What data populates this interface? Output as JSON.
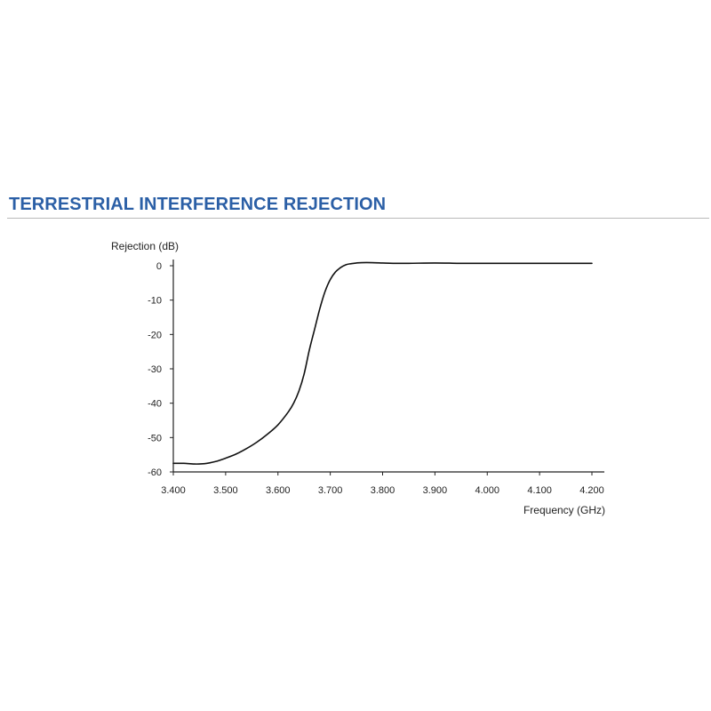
{
  "header": {
    "title": "TERRESTRIAL INTERFERENCE REJECTION"
  },
  "colors": {
    "title": "#2b5fa6",
    "curve": "#111111",
    "axis": "#222222",
    "rule": "#b9b9b9"
  },
  "chart_data": {
    "type": "line",
    "title": "",
    "xlabel": "Frequency (GHz)",
    "ylabel": "Rejection (dB)",
    "xlim": [
      3.4,
      4.2
    ],
    "ylim": [
      -60,
      0
    ],
    "x_ticks": [
      3.4,
      3.5,
      3.6,
      3.7,
      3.8,
      3.9,
      4.0,
      4.1,
      4.2
    ],
    "x_tick_labels": [
      "3.400",
      "3.500",
      "3.600",
      "3.700",
      "3.800",
      "3.900",
      "4.000",
      "4.100",
      "4.200"
    ],
    "y_ticks": [
      0,
      -10,
      -20,
      -30,
      -40,
      -50,
      -60
    ],
    "y_tick_labels": [
      "0",
      "-10",
      "-20",
      "-30",
      "-40",
      "-50",
      "-60"
    ],
    "grid": false,
    "legend": "none",
    "series": [
      {
        "x": [
          3.4,
          3.42,
          3.44,
          3.46,
          3.48,
          3.5,
          3.52,
          3.54,
          3.56,
          3.58,
          3.6,
          3.62,
          3.63,
          3.64,
          3.65,
          3.66,
          3.67,
          3.68,
          3.69,
          3.7,
          3.71,
          3.72,
          3.73,
          3.74,
          3.75,
          3.76,
          3.78,
          3.8,
          3.82,
          3.85,
          3.9,
          3.95,
          4.0,
          4.05,
          4.1,
          4.15,
          4.2
        ],
        "y": [
          -57.5,
          -57.5,
          -57.7,
          -57.6,
          -57.0,
          -56.0,
          -54.8,
          -53.2,
          -51.3,
          -49.0,
          -46.3,
          -42.5,
          -40.0,
          -36.5,
          -31.5,
          -24.5,
          -18.5,
          -12.5,
          -7.5,
          -4.0,
          -1.8,
          -0.5,
          0.3,
          0.6,
          0.8,
          0.9,
          0.9,
          0.8,
          0.7,
          0.7,
          0.8,
          0.7,
          0.7,
          0.7,
          0.7,
          0.7,
          0.7
        ]
      }
    ]
  }
}
